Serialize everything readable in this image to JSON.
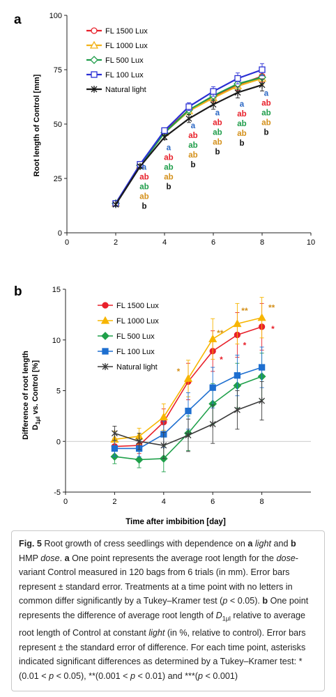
{
  "figure": {
    "panel_a_label": "a",
    "panel_b_label": "b",
    "xlabel": "Time after imbibition  [day]"
  },
  "chart_data": [
    {
      "type": "line",
      "panel": "a",
      "ylabel": "Root length of Control [mm]",
      "xlim": [
        0,
        10
      ],
      "ylim": [
        0,
        100
      ],
      "xticks": [
        "0",
        "2",
        "4",
        "6",
        "8",
        "10"
      ],
      "yticks": [
        "0",
        "25",
        "50",
        "75",
        "100"
      ],
      "legend_position": "top-left",
      "series": [
        {
          "name": "FL 1500 Lux",
          "color": "#e8202a",
          "marker": "circle-open",
          "x": [
            2,
            3,
            4,
            5,
            6,
            7,
            8
          ],
          "y": [
            13.5,
            31,
            46.5,
            56.5,
            62.5,
            68,
            72
          ],
          "err": [
            0.5,
            1,
            1.2,
            1.8,
            2.2,
            2.5,
            2.8
          ]
        },
        {
          "name": "FL 1000 Lux",
          "color": "#f2b31b",
          "marker": "triangle-open",
          "x": [
            2,
            3,
            4,
            5,
            6,
            7,
            8
          ],
          "y": [
            13.5,
            31,
            46,
            56,
            62,
            67.5,
            71
          ],
          "err": [
            0.5,
            1,
            1.2,
            1.8,
            2.2,
            2.5,
            2.8
          ]
        },
        {
          "name": "FL 500 Lux",
          "color": "#1f9d4a",
          "marker": "diamond-open",
          "x": [
            2,
            3,
            4,
            5,
            6,
            7,
            8
          ],
          "y": [
            13.5,
            31,
            46,
            56.5,
            63,
            68.5,
            71.5
          ],
          "err": [
            0.5,
            1,
            1.2,
            1.8,
            2.2,
            2.5,
            2.8
          ]
        },
        {
          "name": "FL 100 Lux",
          "color": "#2a2fd4",
          "marker": "square-open",
          "x": [
            2,
            3,
            4,
            5,
            6,
            7,
            8
          ],
          "y": [
            13.5,
            31.5,
            47,
            58,
            65,
            71,
            75
          ],
          "err": [
            0.5,
            1,
            1.2,
            1.8,
            2.2,
            2.5,
            2.8
          ]
        },
        {
          "name": "Natural light",
          "color": "#1a1a1a",
          "marker": "star",
          "x": [
            2,
            3,
            4,
            5,
            6,
            7,
            8
          ],
          "y": [
            13,
            30.5,
            44,
            52.5,
            59,
            64.5,
            68
          ],
          "err": [
            0.5,
            1,
            1.2,
            1.8,
            2.2,
            2.5,
            2.8
          ]
        }
      ],
      "letter_groups": [
        {
          "x": 3,
          "y_top": 29,
          "letters": [
            {
              "t": "a",
              "c": "#2a67c4"
            },
            {
              "t": "ab",
              "c": "#e8202a"
            },
            {
              "t": "ab",
              "c": "#1f9d4a"
            },
            {
              "t": "ab",
              "c": "#d4901a"
            },
            {
              "t": "b",
              "c": "#111111"
            }
          ]
        },
        {
          "x": 4,
          "y_top": 38,
          "letters": [
            {
              "t": "a",
              "c": "#2a67c4"
            },
            {
              "t": "ab",
              "c": "#e8202a"
            },
            {
              "t": "ab",
              "c": "#1f9d4a"
            },
            {
              "t": "ab",
              "c": "#d4901a"
            },
            {
              "t": "b",
              "c": "#111111"
            }
          ]
        },
        {
          "x": 5,
          "y_top": 48,
          "letters": [
            {
              "t": "a",
              "c": "#2a67c4"
            },
            {
              "t": "ab",
              "c": "#e8202a"
            },
            {
              "t": "ab",
              "c": "#1f9d4a"
            },
            {
              "t": "ab",
              "c": "#d4901a"
            },
            {
              "t": "b",
              "c": "#111111"
            }
          ]
        },
        {
          "x": 6,
          "y_top": 54,
          "letters": [
            {
              "t": "a",
              "c": "#2a67c4"
            },
            {
              "t": "ab",
              "c": "#e8202a"
            },
            {
              "t": "ab",
              "c": "#1f9d4a"
            },
            {
              "t": "ab",
              "c": "#d4901a"
            },
            {
              "t": "b",
              "c": "#111111"
            }
          ]
        },
        {
          "x": 7,
          "y_top": 58,
          "letters": [
            {
              "t": "a",
              "c": "#2a67c4"
            },
            {
              "t": "ab",
              "c": "#e8202a"
            },
            {
              "t": "ab",
              "c": "#1f9d4a"
            },
            {
              "t": "ab",
              "c": "#d4901a"
            },
            {
              "t": "b",
              "c": "#111111"
            }
          ]
        },
        {
          "x": 8,
          "y_top": 63,
          "letters": [
            {
              "t": "a",
              "c": "#2a67c4"
            },
            {
              "t": "ab",
              "c": "#e8202a"
            },
            {
              "t": "ab",
              "c": "#1f9d4a"
            },
            {
              "t": "ab",
              "c": "#d4901a"
            },
            {
              "t": "b",
              "c": "#111111"
            }
          ]
        }
      ]
    },
    {
      "type": "line",
      "panel": "b",
      "ylabel_line1": "Difference of root length",
      "ylabel_line2_main": "D",
      "ylabel_line2_sub": "1μl",
      "ylabel_line2_rest": " vs. Control [%]",
      "xlim": [
        0,
        10
      ],
      "ylim": [
        -5,
        15
      ],
      "xticks": [
        "0",
        "2",
        "4",
        "6",
        "8"
      ],
      "yticks": [
        "-5",
        "0",
        "5",
        "10",
        "15"
      ],
      "legend_position": "top-left",
      "series": [
        {
          "name": "FL 1500 Lux",
          "color": "#e8202a",
          "marker": "circle",
          "x": [
            2,
            3,
            4,
            5,
            6,
            7,
            8
          ],
          "y": [
            -0.5,
            -0.4,
            1.9,
            5.9,
            8.9,
            10.5,
            11.3
          ],
          "err": [
            0.8,
            0.8,
            1.3,
            1.8,
            2.0,
            2.2,
            2.3
          ]
        },
        {
          "name": "FL 1000 Lux",
          "color": "#f7b500",
          "marker": "triangle",
          "x": [
            2,
            3,
            4,
            5,
            6,
            7,
            8
          ],
          "y": [
            0.2,
            0.5,
            2.4,
            6.2,
            10.1,
            11.6,
            12.2
          ],
          "err": [
            0.8,
            0.8,
            1.3,
            1.8,
            2.0,
            2.0,
            2.0
          ]
        },
        {
          "name": "FL 500 Lux",
          "color": "#1fa04a",
          "marker": "diamond",
          "x": [
            2,
            3,
            4,
            5,
            6,
            7,
            8
          ],
          "y": [
            -1.5,
            -1.8,
            -1.7,
            0.8,
            3.7,
            5.5,
            6.4
          ],
          "err": [
            0.7,
            0.8,
            1.3,
            1.7,
            2.0,
            2.2,
            2.3
          ]
        },
        {
          "name": "FL 100 Lux",
          "color": "#1e6fd0",
          "marker": "square",
          "x": [
            2,
            3,
            4,
            5,
            6,
            7,
            8
          ],
          "y": [
            -0.7,
            -0.7,
            0.7,
            3.0,
            5.3,
            6.5,
            7.3
          ],
          "err": [
            0.8,
            0.8,
            1.3,
            1.8,
            2.0,
            2.0,
            2.0
          ]
        },
        {
          "name": "Natural light",
          "color": "#3a3a3a",
          "marker": "star",
          "x": [
            2,
            3,
            4,
            5,
            6,
            7,
            8
          ],
          "y": [
            0.8,
            0.0,
            -0.4,
            0.6,
            1.7,
            3.1,
            4.0
          ],
          "err": [
            0.7,
            0.8,
            1.3,
            1.6,
            1.9,
            1.9,
            1.9
          ]
        }
      ],
      "significance": [
        {
          "x": 4.6,
          "y": 6.6,
          "text": "*",
          "color": "#d4901a"
        },
        {
          "x": 6.3,
          "y": 10.4,
          "text": "**",
          "color": "#d4901a"
        },
        {
          "x": 7.3,
          "y": 12.6,
          "text": "**",
          "color": "#d4901a"
        },
        {
          "x": 8.4,
          "y": 12.9,
          "text": "**",
          "color": "#d4901a"
        },
        {
          "x": 6.35,
          "y": 7.8,
          "text": "*",
          "color": "#e8202a"
        },
        {
          "x": 7.3,
          "y": 9.2,
          "text": "*",
          "color": "#e8202a"
        },
        {
          "x": 8.45,
          "y": 10.8,
          "text": "*",
          "color": "#e8202a"
        }
      ]
    }
  ],
  "caption": {
    "fig_label": "Fig. 5",
    "s1": "  Root growth of cress seedlings with dependence on ",
    "b1": "a",
    "s2": " ",
    "i1": "light",
    "s3": " and ",
    "b2": "b",
    "s4": " HMP ",
    "i2": "dose",
    "s5": ". ",
    "b3": "a",
    "s6": " One point represents the average root length for the ",
    "i3": "dose",
    "s7": "-variant Control measured in 120 bags from 6 trials (in mm). Error bars represent ± standard error. Treatments at a time point with no letters in common differ significantly by a Tukey–Kramer test (",
    "i4": "p",
    "s8": " < 0.05). ",
    "b4": "b",
    "s9": " One point represents the difference of average root length of ",
    "i5": "D",
    "sub1": "1μl",
    "s10": " relative to average root length of Control at constant ",
    "i6": "light",
    "s11": " (in %, relative to control). Error bars represent ± the standard error of difference. For each time point, asterisks indicated significant differences as determined by a Tukey–Kramer test: *(0.01 < ",
    "i7": "p",
    "s12": " < 0.05), **(0.001 < ",
    "i8": "p",
    "s13": " < 0.01) and ***(",
    "i9": "p",
    "s14": " < 0.001)"
  }
}
